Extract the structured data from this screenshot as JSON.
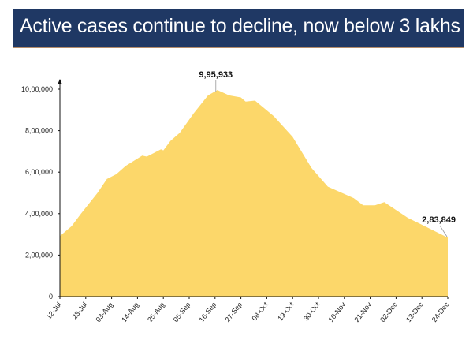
{
  "title": "Active cases continue to decline, now below 3 lakhs",
  "chart_data": {
    "type": "area",
    "title": "Active cases continue to decline, now below 3 lakhs",
    "xlabel": "",
    "ylabel": "",
    "ylim": [
      0,
      1000000
    ],
    "grid": false,
    "fill_color": "#fcd76a",
    "y_ticks": [
      0,
      200000,
      400000,
      600000,
      800000,
      1000000
    ],
    "y_tick_labels": [
      "0",
      "2,00,000",
      "4,00,000",
      "6,00,000",
      "8,00,000",
      "10,00,000"
    ],
    "x_ticks": [
      "2020-07-12",
      "2020-07-23",
      "2020-08-03",
      "2020-08-14",
      "2020-08-25",
      "2020-09-05",
      "2020-09-16",
      "2020-09-27",
      "2020-10-08",
      "2020-10-19",
      "2020-10-30",
      "2020-11-10",
      "2020-11-21",
      "2020-12-02",
      "2020-12-13",
      "2020-12-24"
    ],
    "x_tick_labels": [
      "12-Jul",
      "23-Jul",
      "03-Aug",
      "14-Aug",
      "25-Aug",
      "05-Sep",
      "16-Sep",
      "27-Sep",
      "08-Oct",
      "19-Oct",
      "30-Oct",
      "10-Nov",
      "21-Nov",
      "02-Dec",
      "13-Dec",
      "24-Dec"
    ],
    "x": [
      "2020-07-12",
      "2020-07-17",
      "2020-07-21",
      "2020-07-28",
      "2020-08-01",
      "2020-08-05",
      "2020-08-09",
      "2020-08-16",
      "2020-08-18",
      "2020-08-24",
      "2020-08-25",
      "2020-08-28",
      "2020-09-01",
      "2020-09-07",
      "2020-09-13",
      "2020-09-17",
      "2020-09-22",
      "2020-09-27",
      "2020-09-29",
      "2020-10-03",
      "2020-10-11",
      "2020-10-19",
      "2020-10-27",
      "2020-11-03",
      "2020-11-14",
      "2020-11-18",
      "2020-11-23",
      "2020-11-27",
      "2020-12-07",
      "2020-12-15",
      "2020-12-24"
    ],
    "values": [
      292000,
      340000,
      400000,
      500000,
      567000,
      590000,
      630000,
      680000,
      675000,
      710000,
      705000,
      750000,
      790000,
      885000,
      970000,
      995933,
      970000,
      960000,
      940000,
      945000,
      870000,
      770000,
      620000,
      530000,
      475000,
      440000,
      440000,
      455000,
      380000,
      335000,
      283849
    ],
    "annotations": [
      {
        "x": "2020-09-17",
        "text": "9,95,933"
      },
      {
        "x": "2020-12-24",
        "text": "2,83,849"
      }
    ]
  }
}
